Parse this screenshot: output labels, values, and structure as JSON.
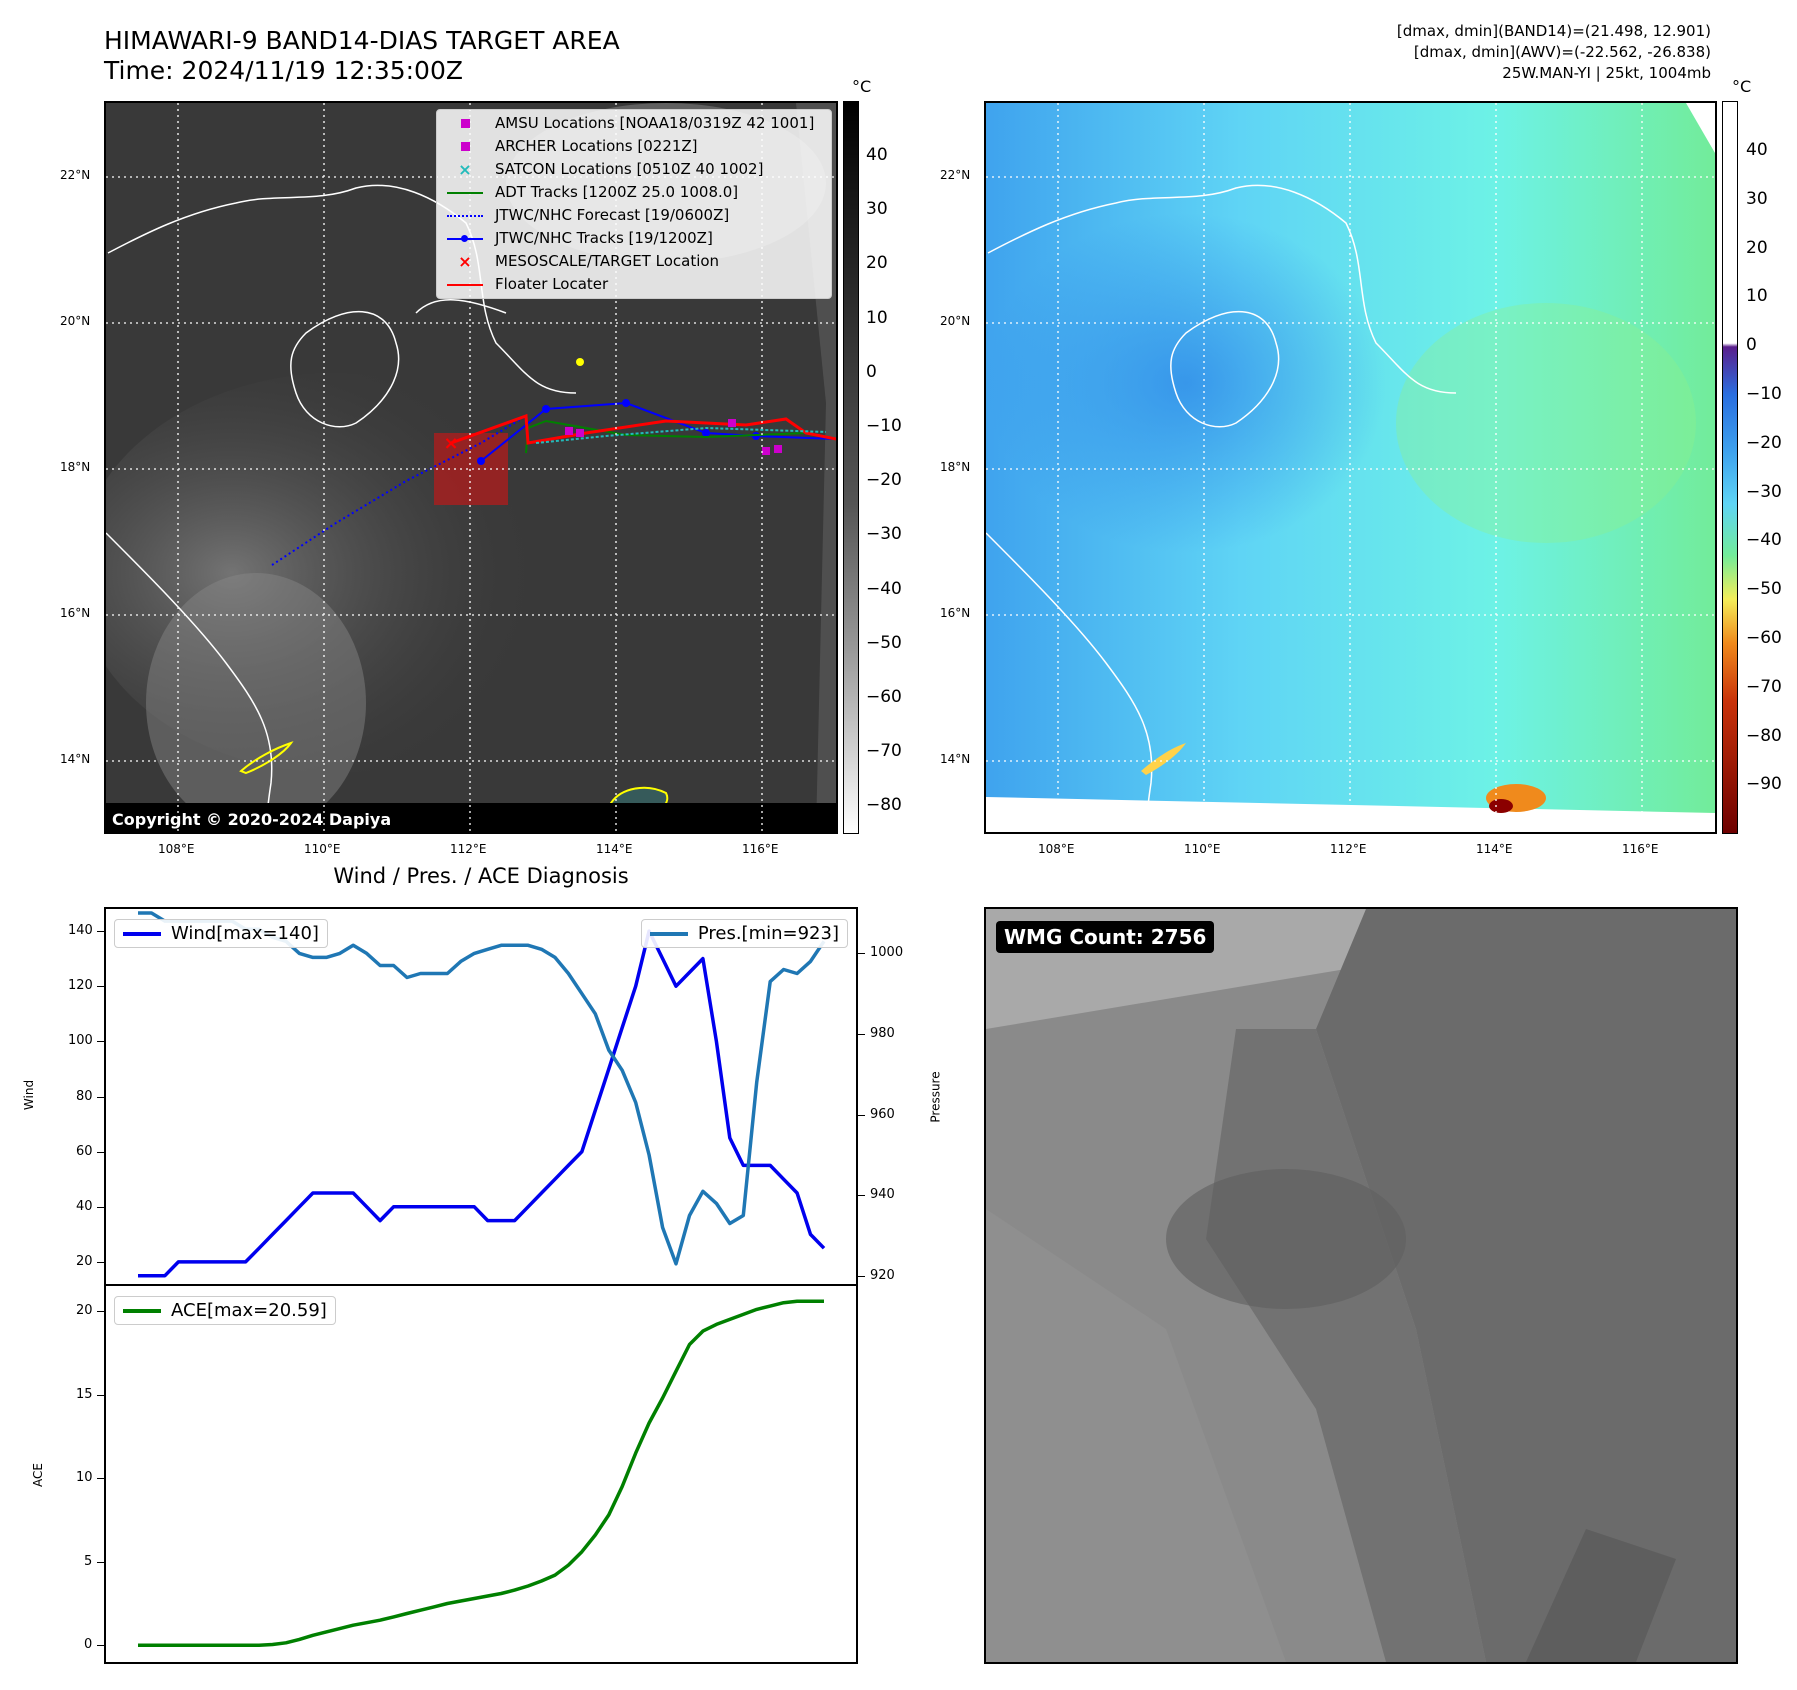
{
  "header": {
    "title_line1": "HIMAWARI-9 BAND14-DIAS TARGET AREA",
    "title_line2": "Time: 2024/11/19 12:35:00Z",
    "info_line1": "[dmax, dmin](BAND14)=(21.498, 12.901)",
    "info_line2": "[dmax, dmin](AWV)=(-22.562, -26.838)",
    "info_line3": "25W.MAN-YI | 25kt, 1004mb"
  },
  "map": {
    "unit_label": "°C",
    "lat_labels": [
      "22°N",
      "20°N",
      "18°N",
      "16°N",
      "14°N"
    ],
    "lon_labels": [
      "108°E",
      "110°E",
      "112°E",
      "114°E",
      "116°E"
    ],
    "copyright": "Copyright © 2020-2024 Dapiya",
    "legend": [
      {
        "label": "AMSU Locations [NOAA18/0319Z 42 1001]",
        "color": "#cc00cc",
        "kind": "square"
      },
      {
        "label": "ARCHER Locations [0221Z]",
        "color": "#cc00cc",
        "kind": "square"
      },
      {
        "label": "SATCON Locations [0510Z 40 1002]",
        "color": "#22bbbb",
        "kind": "x"
      },
      {
        "label": "ADT Tracks [1200Z 25.0 1008.0]",
        "color": "#008000",
        "kind": "line"
      },
      {
        "label": "JTWC/NHC Forecast [19/0600Z]",
        "color": "#0000ff",
        "kind": "dotted"
      },
      {
        "label": "JTWC/NHC Tracks [19/1200Z]",
        "color": "#0000ff",
        "kind": "linedot"
      },
      {
        "label": "MESOSCALE/TARGET Location",
        "color": "#ff0000",
        "kind": "x"
      },
      {
        "label": "Floater Locater",
        "color": "#ff0000",
        "kind": "line"
      }
    ]
  },
  "colorbar_ir": {
    "ticks": [
      "40",
      "30",
      "20",
      "10",
      "0",
      "−10",
      "−20",
      "−30",
      "−40",
      "−50",
      "−60",
      "−70",
      "−80"
    ]
  },
  "colorbar_wv": {
    "unit_label": "°C",
    "ticks": [
      "40",
      "30",
      "20",
      "10",
      "0",
      "−10",
      "−20",
      "−30",
      "−40",
      "−50",
      "−60",
      "−70",
      "−80",
      "−90"
    ]
  },
  "wmg": {
    "label": "WMG Count: 2756"
  },
  "chart_data": [
    {
      "type": "line",
      "title": "Wind / Pres. / ACE Diagnosis",
      "ylabel": "Wind",
      "y2label": "Pressure",
      "ylim": [
        12,
        148
      ],
      "y2lim": [
        918,
        1011
      ],
      "yticks": [
        "20",
        "40",
        "60",
        "80",
        "100",
        "120",
        "140"
      ],
      "y2ticks": [
        "920",
        "940",
        "960",
        "980",
        "1000"
      ],
      "series": [
        {
          "name": "Wind[max=140]",
          "axis": "left",
          "color": "#0000ee",
          "values": [
            15,
            15,
            15,
            20,
            20,
            20,
            20,
            20,
            20,
            25,
            30,
            35,
            40,
            45,
            45,
            45,
            45,
            40,
            35,
            40,
            40,
            40,
            40,
            40,
            40,
            40,
            35,
            35,
            35,
            40,
            45,
            50,
            55,
            60,
            75,
            90,
            105,
            120,
            140,
            130,
            120,
            125,
            130,
            100,
            65,
            55,
            55,
            55,
            50,
            45,
            30,
            25
          ]
        },
        {
          "name": "Pres.[min=923]",
          "axis": "right",
          "color": "#1f77b4",
          "values": [
            1010,
            1010,
            1008,
            1008,
            1008,
            1008,
            1008,
            1008,
            1006,
            1006,
            1004,
            1003,
            1000,
            999,
            999,
            1000,
            1002,
            1000,
            997,
            997,
            994,
            995,
            995,
            995,
            998,
            1000,
            1001,
            1002,
            1002,
            1002,
            1001,
            999,
            995,
            990,
            985,
            976,
            971,
            963,
            950,
            932,
            923,
            935,
            941,
            938,
            933,
            935,
            968,
            993,
            996,
            995,
            998,
            1003
          ]
        }
      ]
    },
    {
      "type": "line",
      "ylabel": "ACE",
      "ylim": [
        -1,
        21.5
      ],
      "yticks": [
        "0",
        "5",
        "10",
        "15",
        "20"
      ],
      "series": [
        {
          "name": "ACE[max=20.59]",
          "color": "#008000",
          "values": [
            0,
            0,
            0,
            0,
            0,
            0,
            0,
            0,
            0,
            0,
            0.05,
            0.15,
            0.35,
            0.6,
            0.8,
            1.0,
            1.2,
            1.35,
            1.5,
            1.7,
            1.9,
            2.1,
            2.3,
            2.5,
            2.65,
            2.8,
            2.95,
            3.1,
            3.3,
            3.55,
            3.85,
            4.2,
            4.8,
            5.6,
            6.6,
            7.8,
            9.5,
            11.5,
            13.3,
            14.8,
            16.4,
            18.0,
            18.8,
            19.2,
            19.5,
            19.8,
            20.1,
            20.3,
            20.5,
            20.59,
            20.59,
            20.59
          ]
        }
      ]
    }
  ]
}
